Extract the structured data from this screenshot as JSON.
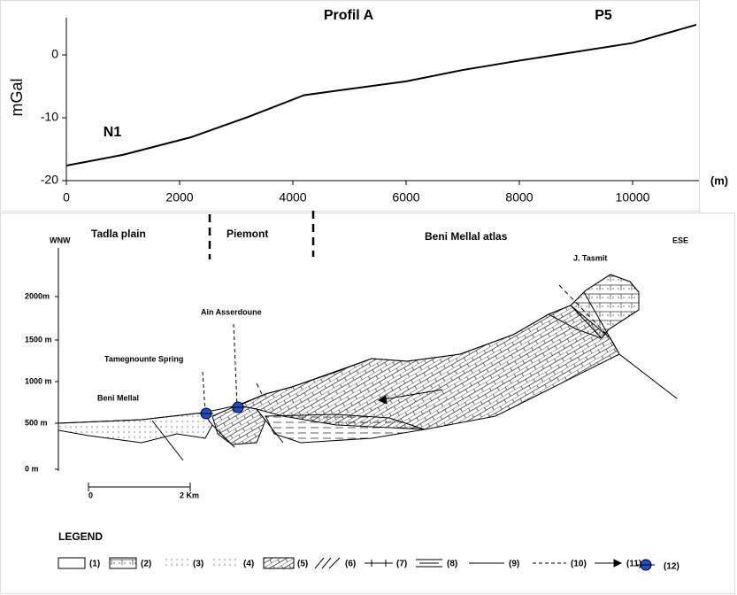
{
  "chart_data": {
    "type": "line",
    "annotations": [
      "Profil A",
      "P5",
      "N1"
    ],
    "ylabel": "mGal",
    "xlabel": "(m)",
    "x": [
      0,
      1000,
      2200,
      3200,
      4200,
      6000,
      7000,
      8000,
      10000,
      11125
    ],
    "values": [
      -17.6,
      -15.9,
      -13.1,
      -9.9,
      -6.4,
      -4.2,
      -2.4,
      -0.9,
      1.9,
      4.8
    ],
    "color": "#000000",
    "xlim": [
      0,
      11125
    ],
    "xticks": [
      0,
      2000,
      4000,
      6000,
      8000,
      10000
    ],
    "ylim": [
      -20,
      5.5
    ],
    "yticks": [
      -20,
      -10,
      0
    ]
  },
  "diagram": {
    "zones": [
      "Tadla plain",
      "Piemont",
      "Beni Mellal atlas"
    ],
    "directions": [
      "WNW",
      "ESE"
    ],
    "elevations": [
      "2000m",
      "1500 m",
      "1000 m",
      "500 m",
      "0 m"
    ],
    "places": [
      "J. Tasmit",
      "Ain Asserdoune",
      "Tamegnounte Spring",
      "Beni Mellal"
    ],
    "scale": [
      "0",
      "2 Km"
    ],
    "legend": {
      "title": "LEGEND",
      "items": [
        "(1)",
        "(2)",
        "(3)",
        "(4)",
        "(5)",
        "(6)",
        "(7)",
        "(8)",
        "(9)",
        "(10)",
        "(11)",
        "(12)"
      ]
    }
  }
}
